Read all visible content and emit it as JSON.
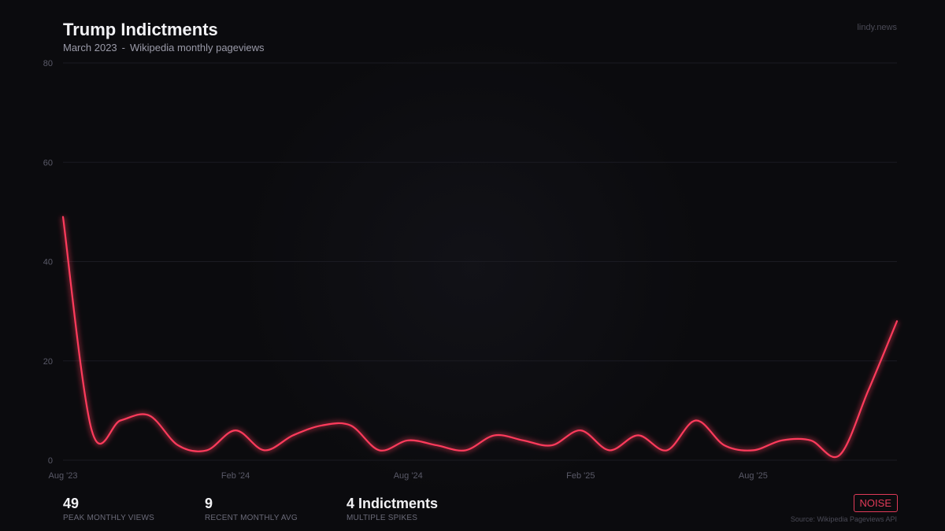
{
  "header": {
    "title": "Trump Indictments",
    "date": "March 2023",
    "separator": "-",
    "subtitle": "Wikipedia monthly pageviews",
    "brand": "lindy.news"
  },
  "chart_data": {
    "type": "line",
    "title": "Trump Indictments",
    "xlabel": "",
    "ylabel": "",
    "ylim": [
      0,
      80
    ],
    "yticks": [
      0,
      20,
      40,
      60,
      80
    ],
    "x_tick_labels": [
      "Aug '23",
      "Feb '24",
      "Aug '24",
      "Feb '25",
      "Aug '25"
    ],
    "x_tick_month_index": [
      0,
      6,
      12,
      18,
      24
    ],
    "grid": true,
    "color": "#ff3b5c",
    "series": [
      {
        "name": "",
        "x": [
          "2023-08",
          "2023-09",
          "2023-10",
          "2023-11",
          "2023-12",
          "2024-01",
          "2024-02",
          "2024-03",
          "2024-04",
          "2024-05",
          "2024-06",
          "2024-07",
          "2024-08",
          "2024-09",
          "2024-10",
          "2024-11",
          "2024-12",
          "2025-01",
          "2025-02",
          "2025-03",
          "2025-04",
          "2025-05",
          "2025-06",
          "2025-07",
          "2025-08",
          "2025-09",
          "2025-10",
          "2025-11",
          "2025-12",
          "2026-01"
        ],
        "values": [
          49,
          6,
          8,
          9,
          3,
          2,
          6,
          2,
          5,
          7,
          7,
          2,
          4,
          3,
          2,
          5,
          4,
          3,
          6,
          2,
          5,
          2,
          8,
          3,
          2,
          4,
          4,
          1,
          14,
          28
        ]
      }
    ]
  },
  "stats": [
    {
      "value": "49",
      "label": "PEAK MONTHLY VIEWS"
    },
    {
      "value": "9",
      "label": "RECENT MONTHLY AVG"
    },
    {
      "value": "4 Indictments",
      "label": "MULTIPLE SPIKES"
    }
  ],
  "badge": "NOISE",
  "source": "Source: Wikipedia Pageviews API"
}
